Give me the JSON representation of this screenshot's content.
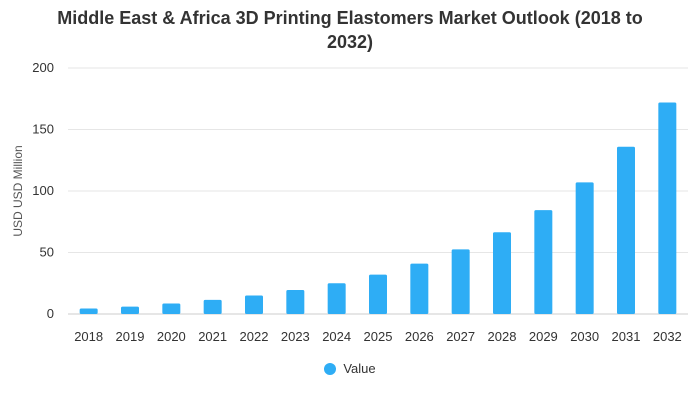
{
  "chart_data": {
    "type": "bar",
    "title_lines": [
      "Middle East & Africa 3D Printing Elastomers Market Outlook (2018 to",
      "2032)"
    ],
    "xlabel": "",
    "ylabel": "USD USD Million",
    "categories": [
      "2018",
      "2019",
      "2020",
      "2021",
      "2022",
      "2023",
      "2024",
      "2025",
      "2026",
      "2027",
      "2028",
      "2029",
      "2030",
      "2031",
      "2032"
    ],
    "series": [
      {
        "name": "Value",
        "values": [
          4.5,
          6,
          8.5,
          11.5,
          15,
          19.5,
          25,
          32,
          41,
          52.5,
          66.5,
          84.5,
          107,
          136,
          172
        ],
        "color": "#2eadf5"
      }
    ],
    "ylim": [
      0,
      200
    ],
    "yticks": [
      "0",
      "50",
      "100",
      "150",
      "200"
    ],
    "grid": true,
    "legend_position": "bottom-center"
  }
}
